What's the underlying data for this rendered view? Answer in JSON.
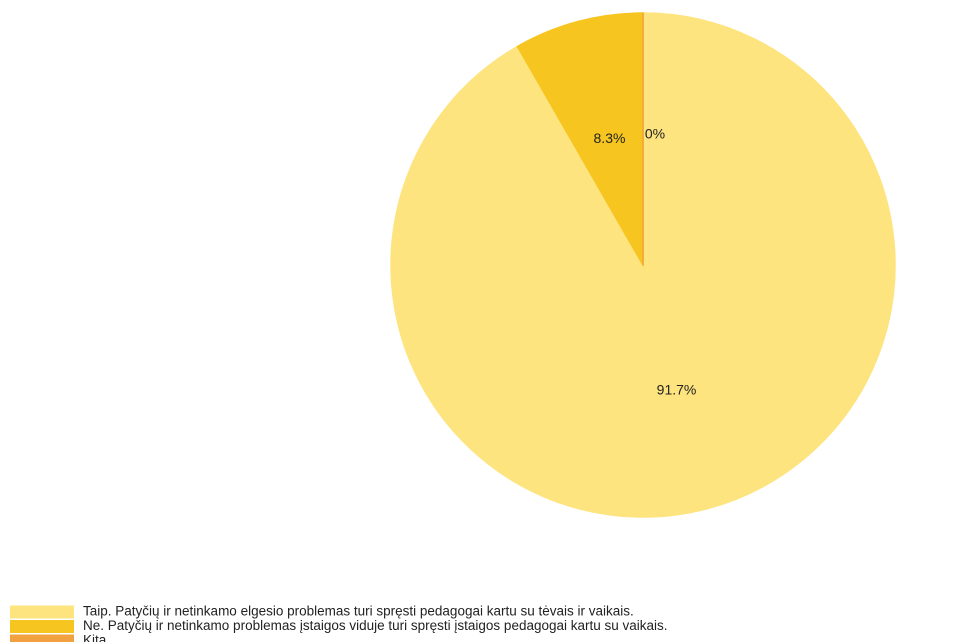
{
  "chart_data": {
    "type": "pie",
    "categories": [
      "Taip. Patyčių ir netinkamo elgesio problemas turi spręsti pedagogai kartu su tėvais ir vaikais.",
      "Ne. Patyčių ir netinkamo problemas įstaigos viduje turi spręsti įstaigos pedagogai kartu su vaikais.",
      "Kita"
    ],
    "values": [
      91.7,
      8.3,
      0
    ],
    "value_labels": [
      "91.7%",
      "8.3%",
      "0%"
    ],
    "colors": [
      "#fde47f",
      "#f7c520",
      "#f2a141"
    ]
  }
}
